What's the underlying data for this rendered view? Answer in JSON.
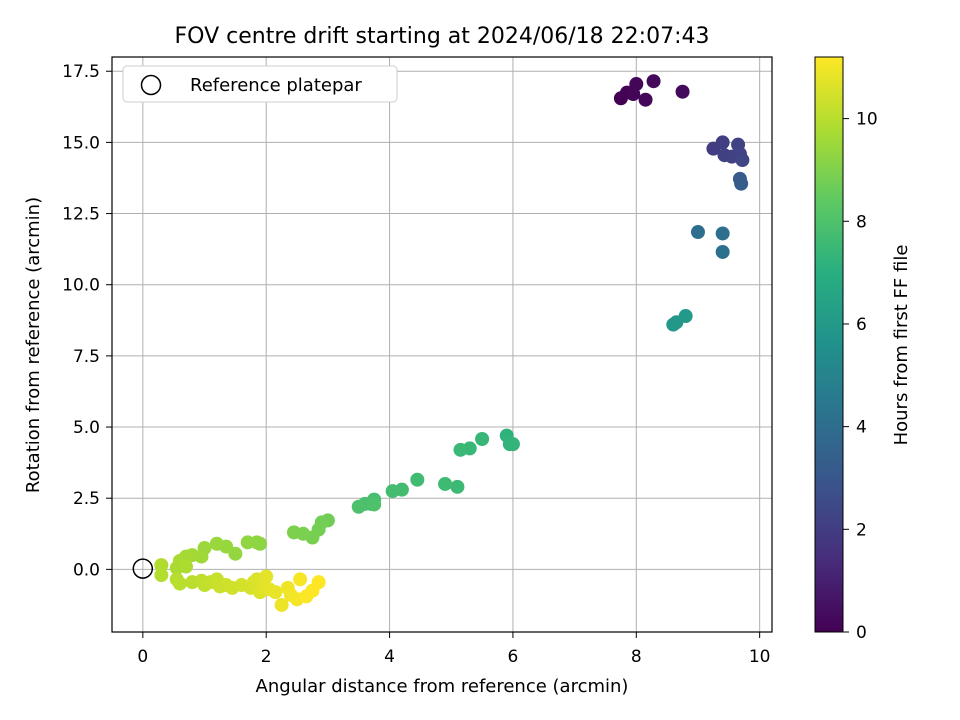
{
  "chart_data": {
    "type": "scatter",
    "title": "FOV centre drift starting at 2024/06/18 22:07:43",
    "xlabel": "Angular distance from reference (arcmin)",
    "ylabel": "Rotation from reference (arcmin)",
    "xlim": [
      -0.5,
      10.2
    ],
    "ylim": [
      -2.2,
      18.0
    ],
    "xticks": [
      "0",
      "2",
      "4",
      "6",
      "8",
      "10"
    ],
    "yticks": [
      "0.0",
      "2.5",
      "5.0",
      "7.5",
      "10.0",
      "12.5",
      "15.0",
      "17.5"
    ],
    "grid": true,
    "legend": {
      "placement": "top-left",
      "entries": [
        {
          "label": "Reference platepar",
          "marker": "open-circle"
        }
      ]
    },
    "reference_point": {
      "x": 0,
      "y": 0
    },
    "colorbar": {
      "label": "Hours from first FF file",
      "range": [
        0,
        11.2
      ],
      "ticks": [
        "0",
        "2",
        "4",
        "6",
        "8",
        "10"
      ],
      "colormap": "viridis"
    },
    "points": [
      {
        "x": 7.75,
        "y": 16.55,
        "t": 0.0
      },
      {
        "x": 7.85,
        "y": 16.75,
        "t": 0.05
      },
      {
        "x": 7.95,
        "y": 16.7,
        "t": 0.1
      },
      {
        "x": 8.0,
        "y": 17.05,
        "t": 0.15
      },
      {
        "x": 8.15,
        "y": 16.5,
        "t": 0.2
      },
      {
        "x": 8.28,
        "y": 17.15,
        "t": 0.25
      },
      {
        "x": 8.75,
        "y": 16.78,
        "t": 0.3
      },
      {
        "x": 9.25,
        "y": 14.78,
        "t": 2.0
      },
      {
        "x": 9.4,
        "y": 15.0,
        "t": 2.05
      },
      {
        "x": 9.43,
        "y": 14.55,
        "t": 2.1
      },
      {
        "x": 9.55,
        "y": 14.5,
        "t": 2.15
      },
      {
        "x": 9.65,
        "y": 14.92,
        "t": 2.2
      },
      {
        "x": 9.68,
        "y": 14.6,
        "t": 2.25
      },
      {
        "x": 9.72,
        "y": 14.38,
        "t": 2.3
      },
      {
        "x": 9.68,
        "y": 13.72,
        "t": 3.2
      },
      {
        "x": 9.7,
        "y": 13.55,
        "t": 3.25
      },
      {
        "x": 9.0,
        "y": 11.85,
        "t": 4.0
      },
      {
        "x": 9.4,
        "y": 11.8,
        "t": 4.05
      },
      {
        "x": 9.4,
        "y": 11.15,
        "t": 4.1
      },
      {
        "x": 8.6,
        "y": 8.6,
        "t": 5.9
      },
      {
        "x": 8.65,
        "y": 8.68,
        "t": 5.95
      },
      {
        "x": 8.8,
        "y": 8.9,
        "t": 6.0
      },
      {
        "x": 5.9,
        "y": 4.7,
        "t": 7.2
      },
      {
        "x": 5.95,
        "y": 4.4,
        "t": 7.25
      },
      {
        "x": 6.0,
        "y": 4.4,
        "t": 7.3
      },
      {
        "x": 5.5,
        "y": 4.58,
        "t": 7.4
      },
      {
        "x": 5.3,
        "y": 4.25,
        "t": 7.45
      },
      {
        "x": 5.15,
        "y": 4.2,
        "t": 7.5
      },
      {
        "x": 5.1,
        "y": 2.9,
        "t": 7.55
      },
      {
        "x": 4.9,
        "y": 3.0,
        "t": 7.6
      },
      {
        "x": 4.45,
        "y": 3.15,
        "t": 7.65
      },
      {
        "x": 4.2,
        "y": 2.8,
        "t": 7.7
      },
      {
        "x": 4.05,
        "y": 2.75,
        "t": 7.75
      },
      {
        "x": 3.75,
        "y": 2.45,
        "t": 7.8
      },
      {
        "x": 3.7,
        "y": 2.3,
        "t": 7.85
      },
      {
        "x": 3.6,
        "y": 2.3,
        "t": 7.9
      },
      {
        "x": 3.5,
        "y": 2.2,
        "t": 7.95
      },
      {
        "x": 3.75,
        "y": 2.28,
        "t": 8.0
      },
      {
        "x": 3.0,
        "y": 1.72,
        "t": 8.7
      },
      {
        "x": 2.9,
        "y": 1.65,
        "t": 8.75
      },
      {
        "x": 2.85,
        "y": 1.4,
        "t": 8.8
      },
      {
        "x": 2.75,
        "y": 1.12,
        "t": 8.85
      },
      {
        "x": 2.6,
        "y": 1.25,
        "t": 8.9
      },
      {
        "x": 2.45,
        "y": 1.3,
        "t": 8.95
      },
      {
        "x": 1.9,
        "y": 0.9,
        "t": 9.2
      },
      {
        "x": 1.85,
        "y": 0.95,
        "t": 9.25
      },
      {
        "x": 1.7,
        "y": 0.95,
        "t": 9.3
      },
      {
        "x": 1.5,
        "y": 0.55,
        "t": 9.35
      },
      {
        "x": 1.35,
        "y": 0.8,
        "t": 9.4
      },
      {
        "x": 1.2,
        "y": 0.9,
        "t": 9.45
      },
      {
        "x": 1.0,
        "y": 0.75,
        "t": 9.5
      },
      {
        "x": 0.95,
        "y": 0.45,
        "t": 9.55
      },
      {
        "x": 0.8,
        "y": 0.5,
        "t": 9.6
      },
      {
        "x": 0.7,
        "y": 0.45,
        "t": 9.65
      },
      {
        "x": 0.6,
        "y": 0.3,
        "t": 9.7
      },
      {
        "x": 0.55,
        "y": 0.05,
        "t": 9.75
      },
      {
        "x": 0.7,
        "y": 0.1,
        "t": 9.8
      },
      {
        "x": 0.3,
        "y": 0.15,
        "t": 9.85
      },
      {
        "x": 0.3,
        "y": -0.2,
        "t": 9.9
      },
      {
        "x": 0.55,
        "y": -0.35,
        "t": 9.95
      },
      {
        "x": 0.6,
        "y": -0.5,
        "t": 10.0
      },
      {
        "x": 0.8,
        "y": -0.45,
        "t": 10.05
      },
      {
        "x": 0.95,
        "y": -0.4,
        "t": 10.1
      },
      {
        "x": 1.0,
        "y": -0.55,
        "t": 10.15
      },
      {
        "x": 1.1,
        "y": -0.45,
        "t": 10.2
      },
      {
        "x": 1.2,
        "y": -0.35,
        "t": 10.25
      },
      {
        "x": 1.25,
        "y": -0.6,
        "t": 10.3
      },
      {
        "x": 1.35,
        "y": -0.55,
        "t": 10.35
      },
      {
        "x": 1.45,
        "y": -0.65,
        "t": 10.4
      },
      {
        "x": 1.6,
        "y": -0.55,
        "t": 10.45
      },
      {
        "x": 1.75,
        "y": -0.65,
        "t": 10.5
      },
      {
        "x": 1.8,
        "y": -0.45,
        "t": 10.55
      },
      {
        "x": 1.85,
        "y": -0.35,
        "t": 10.6
      },
      {
        "x": 1.9,
        "y": -0.8,
        "t": 10.65
      },
      {
        "x": 1.95,
        "y": -0.55,
        "t": 10.7
      },
      {
        "x": 2.0,
        "y": -0.25,
        "t": 10.75
      },
      {
        "x": 2.05,
        "y": -0.7,
        "t": 10.8
      },
      {
        "x": 2.15,
        "y": -0.8,
        "t": 10.85
      },
      {
        "x": 2.25,
        "y": -1.25,
        "t": 10.9
      },
      {
        "x": 2.35,
        "y": -0.65,
        "t": 10.95
      },
      {
        "x": 2.4,
        "y": -0.9,
        "t": 11.0
      },
      {
        "x": 2.5,
        "y": -1.05,
        "t": 11.05
      },
      {
        "x": 2.55,
        "y": -0.35,
        "t": 11.1
      },
      {
        "x": 2.65,
        "y": -0.95,
        "t": 11.15
      },
      {
        "x": 2.75,
        "y": -0.75,
        "t": 11.2
      },
      {
        "x": 2.85,
        "y": -0.45,
        "t": 11.2
      }
    ]
  }
}
